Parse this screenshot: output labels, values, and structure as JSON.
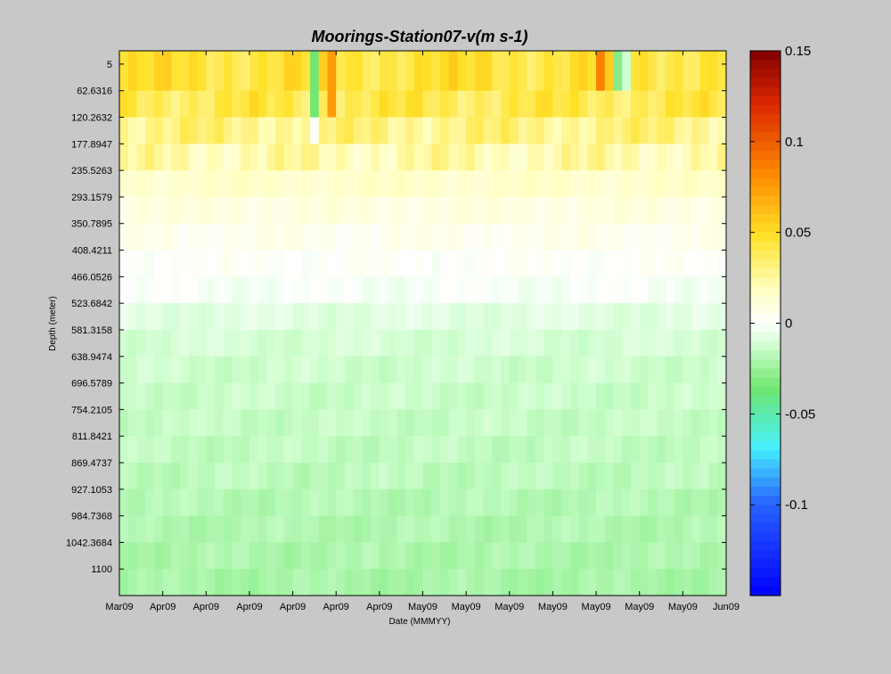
{
  "chart_data": {
    "type": "heatmap",
    "title": "Moorings-Station07-v(m s-1)",
    "xlabel": "Date (MMMYY)",
    "ylabel": "Depth (meter)",
    "x_tick_labels": [
      "Mar09",
      "Apr09",
      "Apr09",
      "Apr09",
      "Apr09",
      "Apr09",
      "Apr09",
      "May09",
      "May09",
      "May09",
      "May09",
      "May09",
      "May09",
      "May09",
      "Jun09"
    ],
    "y_tick_labels": [
      "5",
      "62.6316",
      "120.2632",
      "177.8947",
      "235.5263",
      "293.1579",
      "350.7895",
      "408.4211",
      "466.0526",
      "523.6842",
      "581.3158",
      "638.9474",
      "696.5789",
      "754.2105",
      "811.8421",
      "869.4737",
      "927.1053",
      "984.7368",
      "1042.3684",
      "1100"
    ],
    "depths": [
      5,
      62.6316,
      120.2632,
      177.8947,
      235.5263,
      293.1579,
      350.7895,
      408.4211,
      466.0526,
      523.6842,
      581.3158,
      638.9474,
      696.5789,
      754.2105,
      811.8421,
      869.4737,
      927.1053,
      984.7368,
      1042.3684,
      1100
    ],
    "colorbar": {
      "range": [
        -0.15,
        0.15
      ],
      "tick_values": [
        0.15,
        0.1,
        0.05,
        0,
        -0.05,
        -0.1
      ],
      "tick_labels": [
        "0.15",
        "0.1",
        "0.05",
        "0",
        "-0.05",
        "-0.1"
      ]
    },
    "num_time_steps": 70,
    "depth_profile_v": [
      0.045,
      0.04,
      0.03,
      0.022,
      0.015,
      0.009,
      0.005,
      0.001,
      -0.002,
      -0.008,
      -0.011,
      -0.013,
      -0.014,
      -0.015,
      -0.016,
      -0.017,
      -0.019,
      -0.02,
      -0.021,
      -0.022
    ],
    "surface_anomalies": [
      {
        "time_index": 22,
        "depth_rows": [
          0,
          1
        ],
        "v": -0.035
      },
      {
        "time_index": 24,
        "depth_rows": [
          0,
          1
        ],
        "v": 0.075
      },
      {
        "time_index": 55,
        "depth_rows": [
          0
        ],
        "v": 0.085
      },
      {
        "time_index": 57,
        "depth_rows": [
          0
        ],
        "v": -0.03
      },
      {
        "time_index": 58,
        "depth_rows": [
          0
        ],
        "v": -0.012
      },
      {
        "time_index": 22,
        "depth_rows": [
          2
        ],
        "v": -0.002
      }
    ],
    "grid": false
  }
}
